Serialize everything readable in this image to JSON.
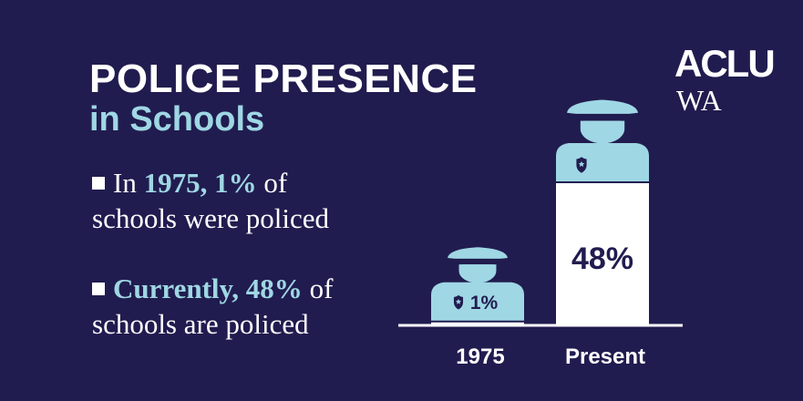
{
  "title": {
    "line1": "POLICE PRESENCE",
    "line2": "in Schools"
  },
  "logo": {
    "line1": "ACLU",
    "line2": "WA"
  },
  "bullets": [
    {
      "pre": "In ",
      "highlight": "1975, 1%",
      "post1": " of",
      "line2": "schools were policed"
    },
    {
      "pre": "",
      "highlight": "Currently, 48%",
      "post1": " of",
      "line2": "schools are policed"
    }
  ],
  "colors": {
    "background": "#211c4f",
    "accent": "#9fd7e4",
    "bar": "#ffffff",
    "icon": "#9fd7e4"
  },
  "icons": [
    "police-officer-icon",
    "badge-icon"
  ],
  "chart_data": {
    "type": "bar",
    "categories": [
      "1975",
      "Present"
    ],
    "values": [
      1,
      48
    ],
    "data_labels": [
      "1%",
      "48%"
    ],
    "unit": "%",
    "ylim": [
      0,
      48
    ],
    "grid": false,
    "legend": "none"
  }
}
